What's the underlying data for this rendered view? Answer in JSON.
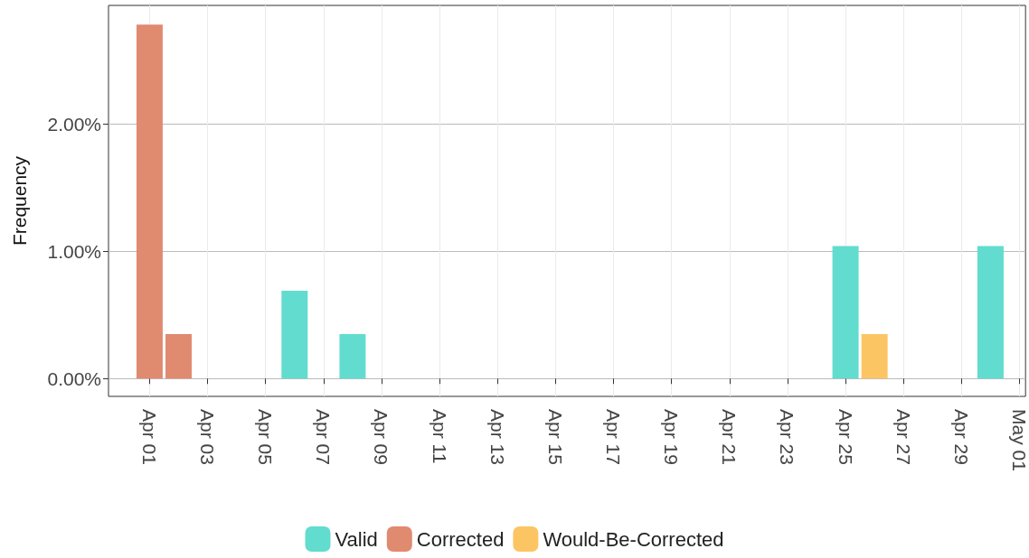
{
  "chart_data": {
    "type": "bar",
    "ylabel": "Frequency",
    "xlim": [
      "--03-30T14:00",
      "--05-01T05:00"
    ],
    "xticks": [
      {
        "value": "--04-01",
        "label": "Apr 01"
      },
      {
        "value": "--04-03",
        "label": "Apr 03"
      },
      {
        "value": "--04-05",
        "label": "Apr 05"
      },
      {
        "value": "--04-07",
        "label": "Apr 07"
      },
      {
        "value": "--04-09",
        "label": "Apr 09"
      },
      {
        "value": "--04-11",
        "label": "Apr 11"
      },
      {
        "value": "--04-13",
        "label": "Apr 13"
      },
      {
        "value": "--04-15",
        "label": "Apr 15"
      },
      {
        "value": "--04-17",
        "label": "Apr 17"
      },
      {
        "value": "--04-19",
        "label": "Apr 19"
      },
      {
        "value": "--04-21",
        "label": "Apr 21"
      },
      {
        "value": "--04-23",
        "label": "Apr 23"
      },
      {
        "value": "--04-25",
        "label": "Apr 25"
      },
      {
        "value": "--04-27",
        "label": "Apr 27"
      },
      {
        "value": "--04-29",
        "label": "Apr 29"
      },
      {
        "value": "--05-01",
        "label": "May 01"
      }
    ],
    "ylim": [
      -0.14,
      2.93
    ],
    "yticks": [
      {
        "value": 0,
        "label": "0.00%"
      },
      {
        "value": 1,
        "label": "1.00%"
      },
      {
        "value": 2,
        "label": "2.00%"
      }
    ],
    "series": [
      {
        "name": "Valid",
        "color": "#62dccf",
        "x": [
          "--04-06",
          "--04-08",
          "--04-25",
          "--04-30"
        ],
        "values": [
          0.69,
          0.35,
          1.04,
          1.04
        ]
      },
      {
        "name": "Corrected",
        "color": "#e08a70",
        "x": [
          "--04-01",
          "--04-02"
        ],
        "values": [
          2.78,
          0.35
        ]
      },
      {
        "name": "Would-Be-Corrected",
        "color": "#fcc564",
        "x": [
          "--04-26"
        ],
        "values": [
          0.35
        ]
      }
    ],
    "grid": true,
    "legend": "bottom"
  }
}
